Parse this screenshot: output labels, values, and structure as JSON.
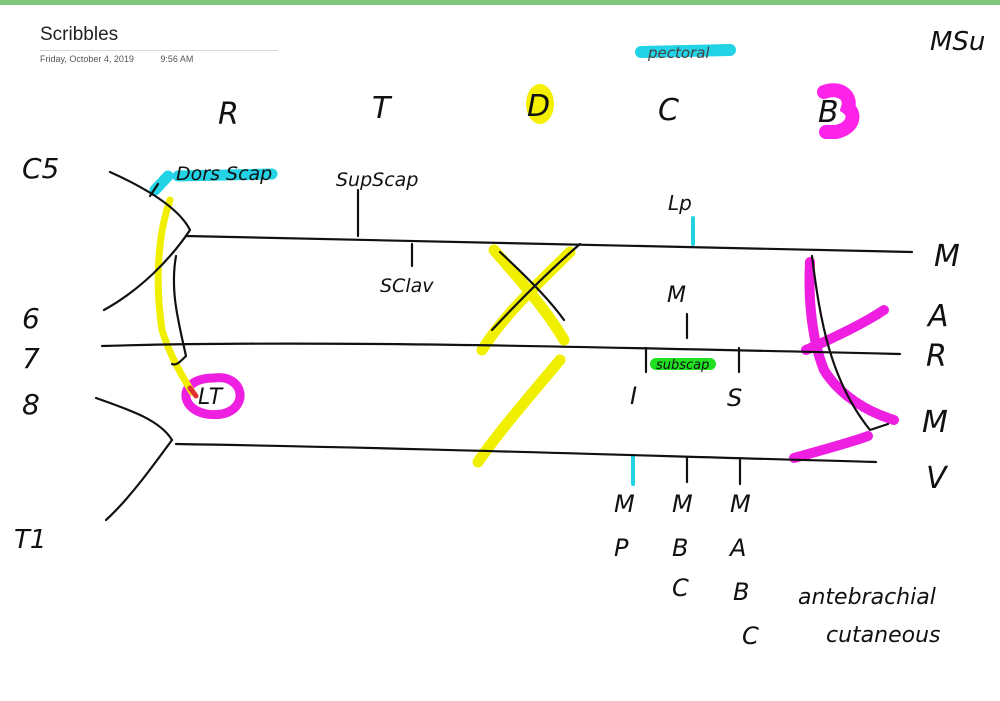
{
  "page": {
    "title": "Scribbles",
    "date": "Friday, October 4, 2019",
    "time": "9:56 AM"
  },
  "ink": {
    "heading": "MSu",
    "pectoral": "pectoral",
    "stages": {
      "r": "R",
      "t": "T",
      "d": "D",
      "c": "C",
      "b": "B"
    },
    "roots": {
      "c5": "C5",
      "c6": "6",
      "c7": "7",
      "c8": "8",
      "t1": "T1"
    },
    "branches": {
      "dors_scap": "Dors Scap",
      "supscap": "SupScap",
      "lp": "Lp",
      "sclav": "SClav",
      "lt": "LT",
      "m_post": "M",
      "subscap": "subscap",
      "i_mark": "I",
      "s_mark": "S"
    },
    "terminal": {
      "m": "M",
      "a": "A",
      "r": "R",
      "m2": "M",
      "u": "V"
    },
    "medial_nerves": {
      "mp": [
        "M",
        "P"
      ],
      "mbc": [
        "M",
        "B",
        "C"
      ],
      "mabc": [
        "M",
        "A",
        "B",
        "C"
      ]
    },
    "note": [
      "antebrachial",
      "cutaneous"
    ]
  }
}
